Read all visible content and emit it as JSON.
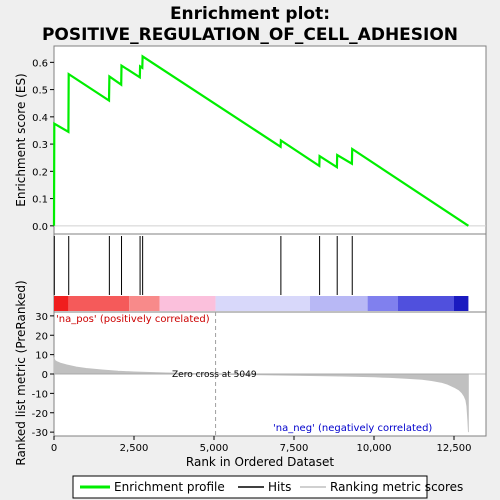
{
  "chart_data": {
    "type": "line",
    "title_line1": "Enrichment plot:",
    "title_line2": "POSITIVE_REGULATION_OF_CELL_ADHESION",
    "top_panel": {
      "ylabel": "Enrichment score (ES)",
      "ylim": [
        -0.03,
        0.66
      ],
      "yticks": [
        0.0,
        0.1,
        0.2,
        0.3,
        0.4,
        0.5,
        0.6
      ],
      "ytick_labels": [
        "0.0",
        "0.1",
        "0.2",
        "0.3",
        "0.4",
        "0.5",
        "0.6"
      ],
      "series": [
        {
          "name": "Enrichment profile",
          "color": "#00ee00",
          "x": [
            0,
            10,
            450,
            460,
            1720,
            1730,
            2100,
            2110,
            2680,
            2690,
            2760,
            2770,
            7080,
            7090,
            8290,
            8300,
            8840,
            8850,
            9310,
            9320,
            12950
          ],
          "y": [
            0.0,
            0.375,
            0.345,
            0.557,
            0.46,
            0.548,
            0.518,
            0.588,
            0.545,
            0.585,
            0.58,
            0.622,
            0.29,
            0.313,
            0.22,
            0.256,
            0.215,
            0.26,
            0.228,
            0.282,
            0.0
          ]
        }
      ]
    },
    "hits": {
      "name": "Hits",
      "color": "#000000",
      "positions": [
        10,
        460,
        1730,
        2110,
        2690,
        2770,
        7090,
        8300,
        8850,
        9320
      ]
    },
    "rank_colorbar": {
      "segments": [
        {
          "from": 0,
          "to": 450,
          "color": "#f01e1e"
        },
        {
          "from": 450,
          "to": 2350,
          "color": "#f55a5a"
        },
        {
          "from": 2350,
          "to": 3300,
          "color": "#f88a8a"
        },
        {
          "from": 3300,
          "to": 5050,
          "color": "#fbc0dc"
        },
        {
          "from": 5050,
          "to": 8000,
          "color": "#d8d8fa"
        },
        {
          "from": 8000,
          "to": 9800,
          "color": "#b8b8f5"
        },
        {
          "from": 9800,
          "to": 10750,
          "color": "#8080ee"
        },
        {
          "from": 10750,
          "to": 12500,
          "color": "#5050dd"
        },
        {
          "from": 12500,
          "to": 12950,
          "color": "#1a1ac0"
        }
      ]
    },
    "bottom_panel": {
      "ylabel": "Ranked list metric (PreRanked)",
      "xlabel": "Rank in Ordered Dataset",
      "ylim": [
        -32,
        32
      ],
      "yticks": [
        -30,
        -20,
        -10,
        0,
        10,
        20,
        30
      ],
      "ytick_labels": [
        "-30",
        "-20",
        "-10",
        "0",
        "10",
        "20",
        "30"
      ],
      "series": [
        {
          "name": "Ranking metric scores",
          "color": "#c0c0c0",
          "x": [
            0,
            30,
            100,
            200,
            400,
            700,
            1000,
            1500,
            2000,
            2500,
            3000,
            3500,
            4000,
            4500,
            5049,
            5500,
            6000,
            7000,
            8000,
            9000,
            10000,
            10500,
            11000,
            11500,
            11800,
            12100,
            12300,
            12500,
            12650,
            12750,
            12820,
            12870,
            12900,
            12930,
            12950
          ],
          "y": [
            8.5,
            7.0,
            6.3,
            5.6,
            4.7,
            3.6,
            2.9,
            2.1,
            1.5,
            1.1,
            0.8,
            0.55,
            0.35,
            0.18,
            0.0,
            -0.15,
            -0.3,
            -0.55,
            -0.8,
            -1.1,
            -1.5,
            -1.8,
            -2.2,
            -2.8,
            -3.4,
            -4.3,
            -5.3,
            -6.8,
            -8.2,
            -9.8,
            -11.5,
            -13.5,
            -16.5,
            -24,
            -30
          ]
        }
      ],
      "zero_cross_x": 5049,
      "annotations": {
        "pos": "'na_pos' (positively correlated)",
        "neg": "'na_neg' (negatively correlated)",
        "zero": "Zero cross at 5049"
      }
    },
    "xlim": [
      0,
      13500
    ],
    "xticks": [
      0,
      2500,
      5000,
      7500,
      10000,
      12500
    ],
    "xtick_labels": [
      "0",
      "2,500",
      "5,000",
      "7,500",
      "10,000",
      "12,500"
    ],
    "legend": {
      "placement": "bottom",
      "entries": [
        "Enrichment profile",
        "Hits",
        "Ranking metric scores"
      ]
    }
  }
}
